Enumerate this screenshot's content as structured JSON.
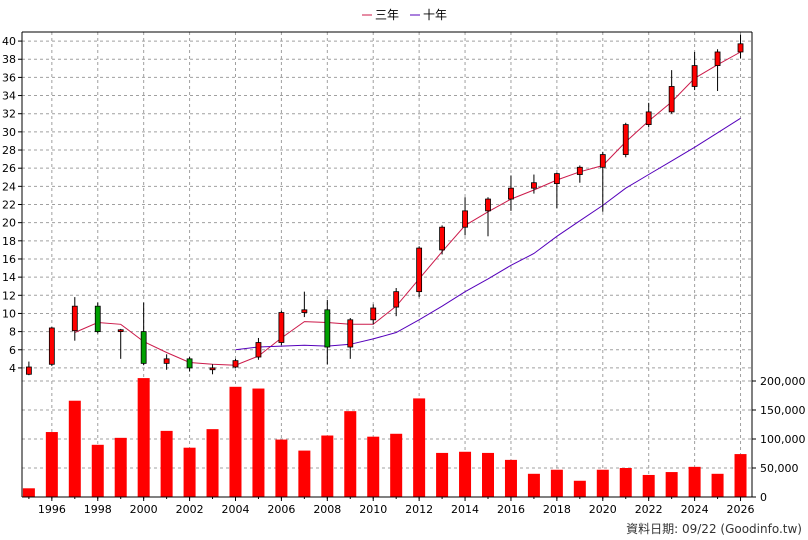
{
  "chart_data": {
    "type": "candlestick",
    "legend": {
      "placement": "top-center",
      "items": [
        {
          "label": "三年",
          "color": "#cc1a4a"
        },
        {
          "label": "十年",
          "color": "#5500bb"
        }
      ]
    },
    "price_axis": {
      "ylim": [
        3,
        41
      ],
      "ticks": [
        4,
        6,
        8,
        10,
        12,
        14,
        16,
        18,
        20,
        22,
        24,
        26,
        28,
        30,
        32,
        34,
        36,
        38,
        40
      ],
      "side": "left",
      "grid": true
    },
    "volume_axis": {
      "ylim": [
        0,
        200000
      ],
      "ticks": [
        0,
        50000,
        100000,
        150000,
        200000
      ],
      "tick_labels": [
        "0",
        "50,000",
        "100,000",
        "150,000",
        "200,000"
      ],
      "side": "right",
      "grid": true
    },
    "x_axis": {
      "xlim": [
        1994.7,
        2026.5
      ],
      "tick_labels": [
        "1996",
        "1998",
        "2000",
        "2002",
        "2004",
        "2006",
        "2008",
        "2010",
        "2012",
        "2014",
        "2016",
        "2018",
        "2020",
        "2022",
        "2024",
        "2026"
      ]
    },
    "colors": {
      "up": "#ff0000",
      "down": "#00a000",
      "volume": "#ff0000",
      "grid": "#a0a0a0"
    },
    "candles": [
      {
        "year": 1995,
        "open": 3.3,
        "high": 4.7,
        "low": 3.2,
        "close": 4.1
      },
      {
        "year": 1996,
        "open": 4.4,
        "high": 8.5,
        "low": 4.2,
        "close": 8.4
      },
      {
        "year": 1997,
        "open": 8.1,
        "high": 11.8,
        "low": 7.0,
        "close": 10.8
      },
      {
        "year": 1998,
        "open": 10.8,
        "high": 11.2,
        "low": 7.8,
        "close": 8.0
      },
      {
        "year": 1999,
        "open": 8.0,
        "high": 8.3,
        "low": 5.0,
        "close": 8.2
      },
      {
        "year": 2000,
        "open": 8.0,
        "high": 11.2,
        "low": 4.3,
        "close": 4.5
      },
      {
        "year": 2001,
        "open": 4.5,
        "high": 5.5,
        "low": 3.8,
        "close": 5.0
      },
      {
        "year": 2002,
        "open": 5.0,
        "high": 5.2,
        "low": 3.6,
        "close": 4.0
      },
      {
        "year": 2003,
        "open": 3.8,
        "high": 4.4,
        "low": 3.3,
        "close": 4.0
      },
      {
        "year": 2004,
        "open": 4.1,
        "high": 5.0,
        "low": 4.0,
        "close": 4.8
      },
      {
        "year": 2005,
        "open": 5.2,
        "high": 7.3,
        "low": 4.9,
        "close": 6.8
      },
      {
        "year": 2006,
        "open": 6.8,
        "high": 10.3,
        "low": 6.5,
        "close": 10.1
      },
      {
        "year": 2007,
        "open": 10.1,
        "high": 12.4,
        "low": 9.6,
        "close": 10.4
      },
      {
        "year": 2008,
        "open": 10.4,
        "high": 11.5,
        "low": 4.4,
        "close": 6.3
      },
      {
        "year": 2009,
        "open": 6.3,
        "high": 9.5,
        "low": 5.0,
        "close": 9.3
      },
      {
        "year": 2010,
        "open": 9.3,
        "high": 11.0,
        "low": 8.8,
        "close": 10.6
      },
      {
        "year": 2011,
        "open": 10.7,
        "high": 12.8,
        "low": 9.7,
        "close": 12.4
      },
      {
        "year": 2012,
        "open": 12.4,
        "high": 17.4,
        "low": 11.8,
        "close": 17.2
      },
      {
        "year": 2013,
        "open": 17.0,
        "high": 19.7,
        "low": 16.5,
        "close": 19.5
      },
      {
        "year": 2014,
        "open": 19.5,
        "high": 22.8,
        "low": 18.6,
        "close": 21.3
      },
      {
        "year": 2015,
        "open": 21.3,
        "high": 22.8,
        "low": 18.5,
        "close": 22.6
      },
      {
        "year": 2016,
        "open": 22.6,
        "high": 25.2,
        "low": 21.3,
        "close": 23.8
      },
      {
        "year": 2017,
        "open": 23.8,
        "high": 25.3,
        "low": 23.2,
        "close": 24.4
      },
      {
        "year": 2018,
        "open": 24.3,
        "high": 25.5,
        "low": 21.6,
        "close": 25.4
      },
      {
        "year": 2019,
        "open": 25.3,
        "high": 26.3,
        "low": 24.4,
        "close": 26.1
      },
      {
        "year": 2020,
        "open": 26.1,
        "high": 27.8,
        "low": 21.2,
        "close": 27.5
      },
      {
        "year": 2021,
        "open": 27.5,
        "high": 31.0,
        "low": 27.2,
        "close": 30.8
      },
      {
        "year": 2022,
        "open": 30.8,
        "high": 33.2,
        "low": 30.5,
        "close": 32.2
      },
      {
        "year": 2023,
        "open": 32.2,
        "high": 36.8,
        "low": 32.0,
        "close": 35.0
      },
      {
        "year": 2024,
        "open": 35.0,
        "high": 38.8,
        "low": 34.6,
        "close": 37.3
      },
      {
        "year": 2025,
        "open": 37.3,
        "high": 39.1,
        "low": 34.5,
        "close": 38.8
      },
      {
        "year": 2026,
        "open": 38.8,
        "high": 40.7,
        "low": 38.1,
        "close": 39.7
      }
    ],
    "series": [
      {
        "name": "三年",
        "color": "#cc1a4a",
        "x": [
          1997,
          1998,
          1999,
          2000,
          2001,
          2002,
          2003,
          2004,
          2005,
          2006,
          2007,
          2008,
          2009,
          2010,
          2011,
          2012,
          2013,
          2014,
          2015,
          2016,
          2017,
          2018,
          2019,
          2020,
          2021,
          2022,
          2023,
          2024,
          2025,
          2026
        ],
        "y": [
          7.9,
          9.0,
          8.8,
          6.9,
          5.7,
          4.6,
          4.4,
          4.3,
          5.3,
          7.3,
          9.1,
          9.0,
          8.8,
          8.8,
          10.8,
          13.8,
          16.8,
          19.7,
          21.2,
          22.6,
          23.6,
          24.7,
          25.6,
          26.3,
          28.9,
          31.2,
          33.3,
          35.9,
          37.4,
          38.8
        ]
      },
      {
        "name": "十年",
        "color": "#5500bb",
        "x": [
          2004,
          2005,
          2006,
          2007,
          2008,
          2009,
          2010,
          2011,
          2012,
          2013,
          2014,
          2015,
          2016,
          2017,
          2018,
          2019,
          2020,
          2021,
          2022,
          2023,
          2024,
          2025,
          2026
        ],
        "y": [
          6.0,
          6.3,
          6.4,
          6.5,
          6.4,
          6.6,
          7.2,
          7.9,
          9.3,
          10.8,
          12.4,
          13.8,
          15.3,
          16.6,
          18.5,
          20.2,
          21.9,
          23.8,
          25.3,
          26.8,
          28.3,
          29.9,
          31.5
        ]
      }
    ],
    "volume": [
      {
        "year": 1995,
        "value": 15000
      },
      {
        "year": 1996,
        "value": 112000
      },
      {
        "year": 1997,
        "value": 166000
      },
      {
        "year": 1998,
        "value": 90000
      },
      {
        "year": 1999,
        "value": 102000
      },
      {
        "year": 2000,
        "value": 205000
      },
      {
        "year": 2001,
        "value": 114000
      },
      {
        "year": 2002,
        "value": 85000
      },
      {
        "year": 2003,
        "value": 117000
      },
      {
        "year": 2004,
        "value": 190000
      },
      {
        "year": 2005,
        "value": 187000
      },
      {
        "year": 2006,
        "value": 99000
      },
      {
        "year": 2007,
        "value": 80000
      },
      {
        "year": 2008,
        "value": 106000
      },
      {
        "year": 2009,
        "value": 148000
      },
      {
        "year": 2010,
        "value": 104000
      },
      {
        "year": 2011,
        "value": 109000
      },
      {
        "year": 2012,
        "value": 170000
      },
      {
        "year": 2013,
        "value": 76000
      },
      {
        "year": 2014,
        "value": 78000
      },
      {
        "year": 2015,
        "value": 76000
      },
      {
        "year": 2016,
        "value": 64000
      },
      {
        "year": 2017,
        "value": 40000
      },
      {
        "year": 2018,
        "value": 47000
      },
      {
        "year": 2019,
        "value": 28000
      },
      {
        "year": 2020,
        "value": 47000
      },
      {
        "year": 2021,
        "value": 50000
      },
      {
        "year": 2022,
        "value": 38000
      },
      {
        "year": 2023,
        "value": 43000
      },
      {
        "year": 2024,
        "value": 52000
      },
      {
        "year": 2025,
        "value": 40000
      },
      {
        "year": 2026,
        "value": 74000
      }
    ],
    "source_note": "資料日期: 09/22  (Goodinfo.tw)"
  }
}
